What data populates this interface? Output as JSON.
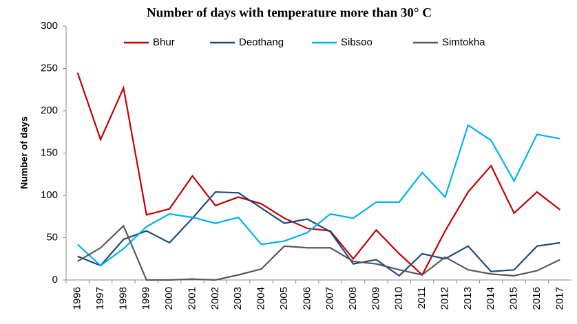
{
  "chart_data": {
    "type": "line",
    "title": "Number of days with temperature more than 30° C",
    "y_label": "Number of days",
    "categories": [
      "1996",
      "1997",
      "1998",
      "1999",
      "2000",
      "2001",
      "2002",
      "2003",
      "2004",
      "2005",
      "2006",
      "2007",
      "2008",
      "2009",
      "2010",
      "2011",
      "2012",
      "2013",
      "2014",
      "2015",
      "2016",
      "2017"
    ],
    "series": [
      {
        "name": "Bhur",
        "color": "#c00000",
        "values": [
          245,
          166,
          227,
          77,
          84,
          123,
          88,
          98,
          90,
          73,
          61,
          58,
          25,
          59,
          31,
          6,
          58,
          104,
          135,
          79,
          104,
          83
        ]
      },
      {
        "name": "Deothang",
        "color": "#1f497d",
        "values": [
          28,
          17,
          48,
          58,
          44,
          73,
          104,
          103,
          85,
          67,
          72,
          57,
          19,
          24,
          5,
          31,
          25,
          40,
          10,
          12,
          40,
          44
        ]
      },
      {
        "name": "Sibsoo",
        "color": "#00b0f0",
        "values": [
          42,
          17,
          37,
          63,
          78,
          74,
          67,
          74,
          42,
          46,
          56,
          78,
          73,
          92,
          92,
          127,
          98,
          183,
          165,
          117,
          172,
          167
        ]
      },
      {
        "name": "Simtokha",
        "color": "#595959",
        "values": [
          22,
          38,
          64,
          0,
          0,
          1,
          0,
          6,
          13,
          40,
          38,
          38,
          22,
          19,
          12,
          6,
          27,
          12,
          7,
          5,
          11,
          24
        ]
      }
    ],
    "ylim": [
      0,
      300
    ],
    "yticks": [
      0,
      50,
      100,
      150,
      200,
      250,
      300
    ],
    "legend": "top"
  }
}
